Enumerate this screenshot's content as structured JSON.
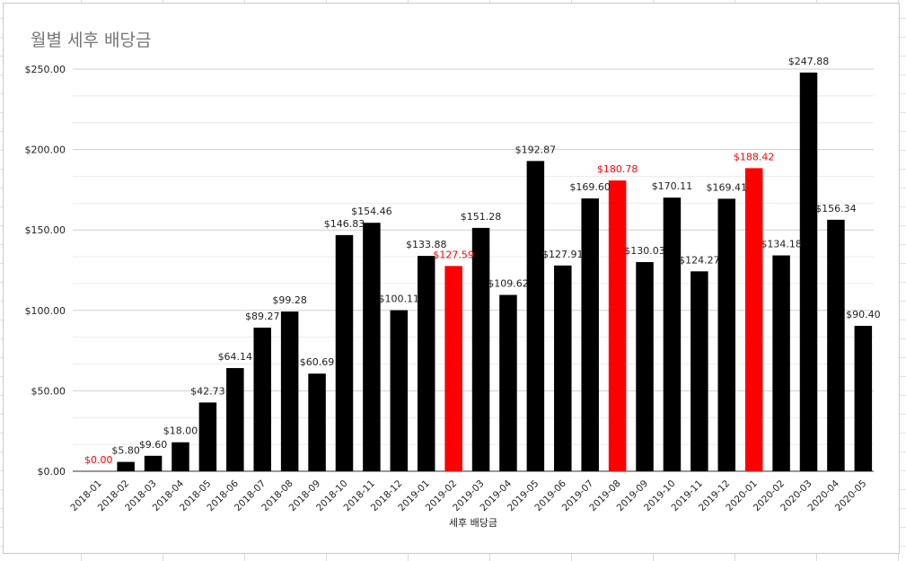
{
  "chart_data": {
    "type": "bar",
    "title": "월별 세후 배당금",
    "xlabel": "세후 배당금",
    "ylabel": "",
    "ylim": [
      0,
      250
    ],
    "yticks": [
      "$0.00",
      "$50.00",
      "$100.00",
      "$150.00",
      "$200.00",
      "$250.00"
    ],
    "grid": true,
    "legend": "none",
    "categories": [
      "2018-01",
      "2018-02",
      "2018-03",
      "2018-04",
      "2018-05",
      "2018-06",
      "2018-07",
      "2018-08",
      "2018-09",
      "2018-10",
      "2018-11",
      "2018-12",
      "2019-01",
      "2019-02",
      "2019-03",
      "2019-04",
      "2019-05",
      "2019-06",
      "2019-07",
      "2019-08",
      "2019-09",
      "2019-10",
      "2019-11",
      "2019-12",
      "2020-01",
      "2020-02",
      "2020-03",
      "2020-04",
      "2020-05"
    ],
    "values": [
      0.0,
      5.8,
      9.6,
      18.0,
      42.73,
      64.14,
      89.27,
      99.28,
      60.69,
      146.83,
      154.46,
      100.11,
      133.88,
      127.59,
      151.28,
      109.62,
      192.87,
      127.91,
      169.6,
      180.78,
      130.03,
      170.11,
      124.27,
      169.41,
      188.42,
      134.18,
      247.88,
      156.34,
      90.4
    ],
    "labels": [
      "$0.00",
      "$5.80",
      "$9.60",
      "$18.00",
      "$42.73",
      "$64.14",
      "$89.27",
      "$99.28",
      "$60.69",
      "$146.83",
      "$154.46",
      "$100.11",
      "$133.88",
      "$127.59",
      "$151.28",
      "$109.62",
      "$192.87",
      "$127.91",
      "$169.60",
      "$180.78",
      "$130.03",
      "$170.11",
      "$124.27",
      "$169.41",
      "$188.42",
      "$134.18",
      "$247.88",
      "$156.34",
      "$90.40"
    ],
    "highlighted": [
      "2018-01",
      "2019-02",
      "2019-08",
      "2020-01"
    ],
    "colors": {
      "bar": "#000000",
      "highlight": "#ff0000",
      "grid": "#d9d9d9",
      "axis": "#333333"
    }
  }
}
